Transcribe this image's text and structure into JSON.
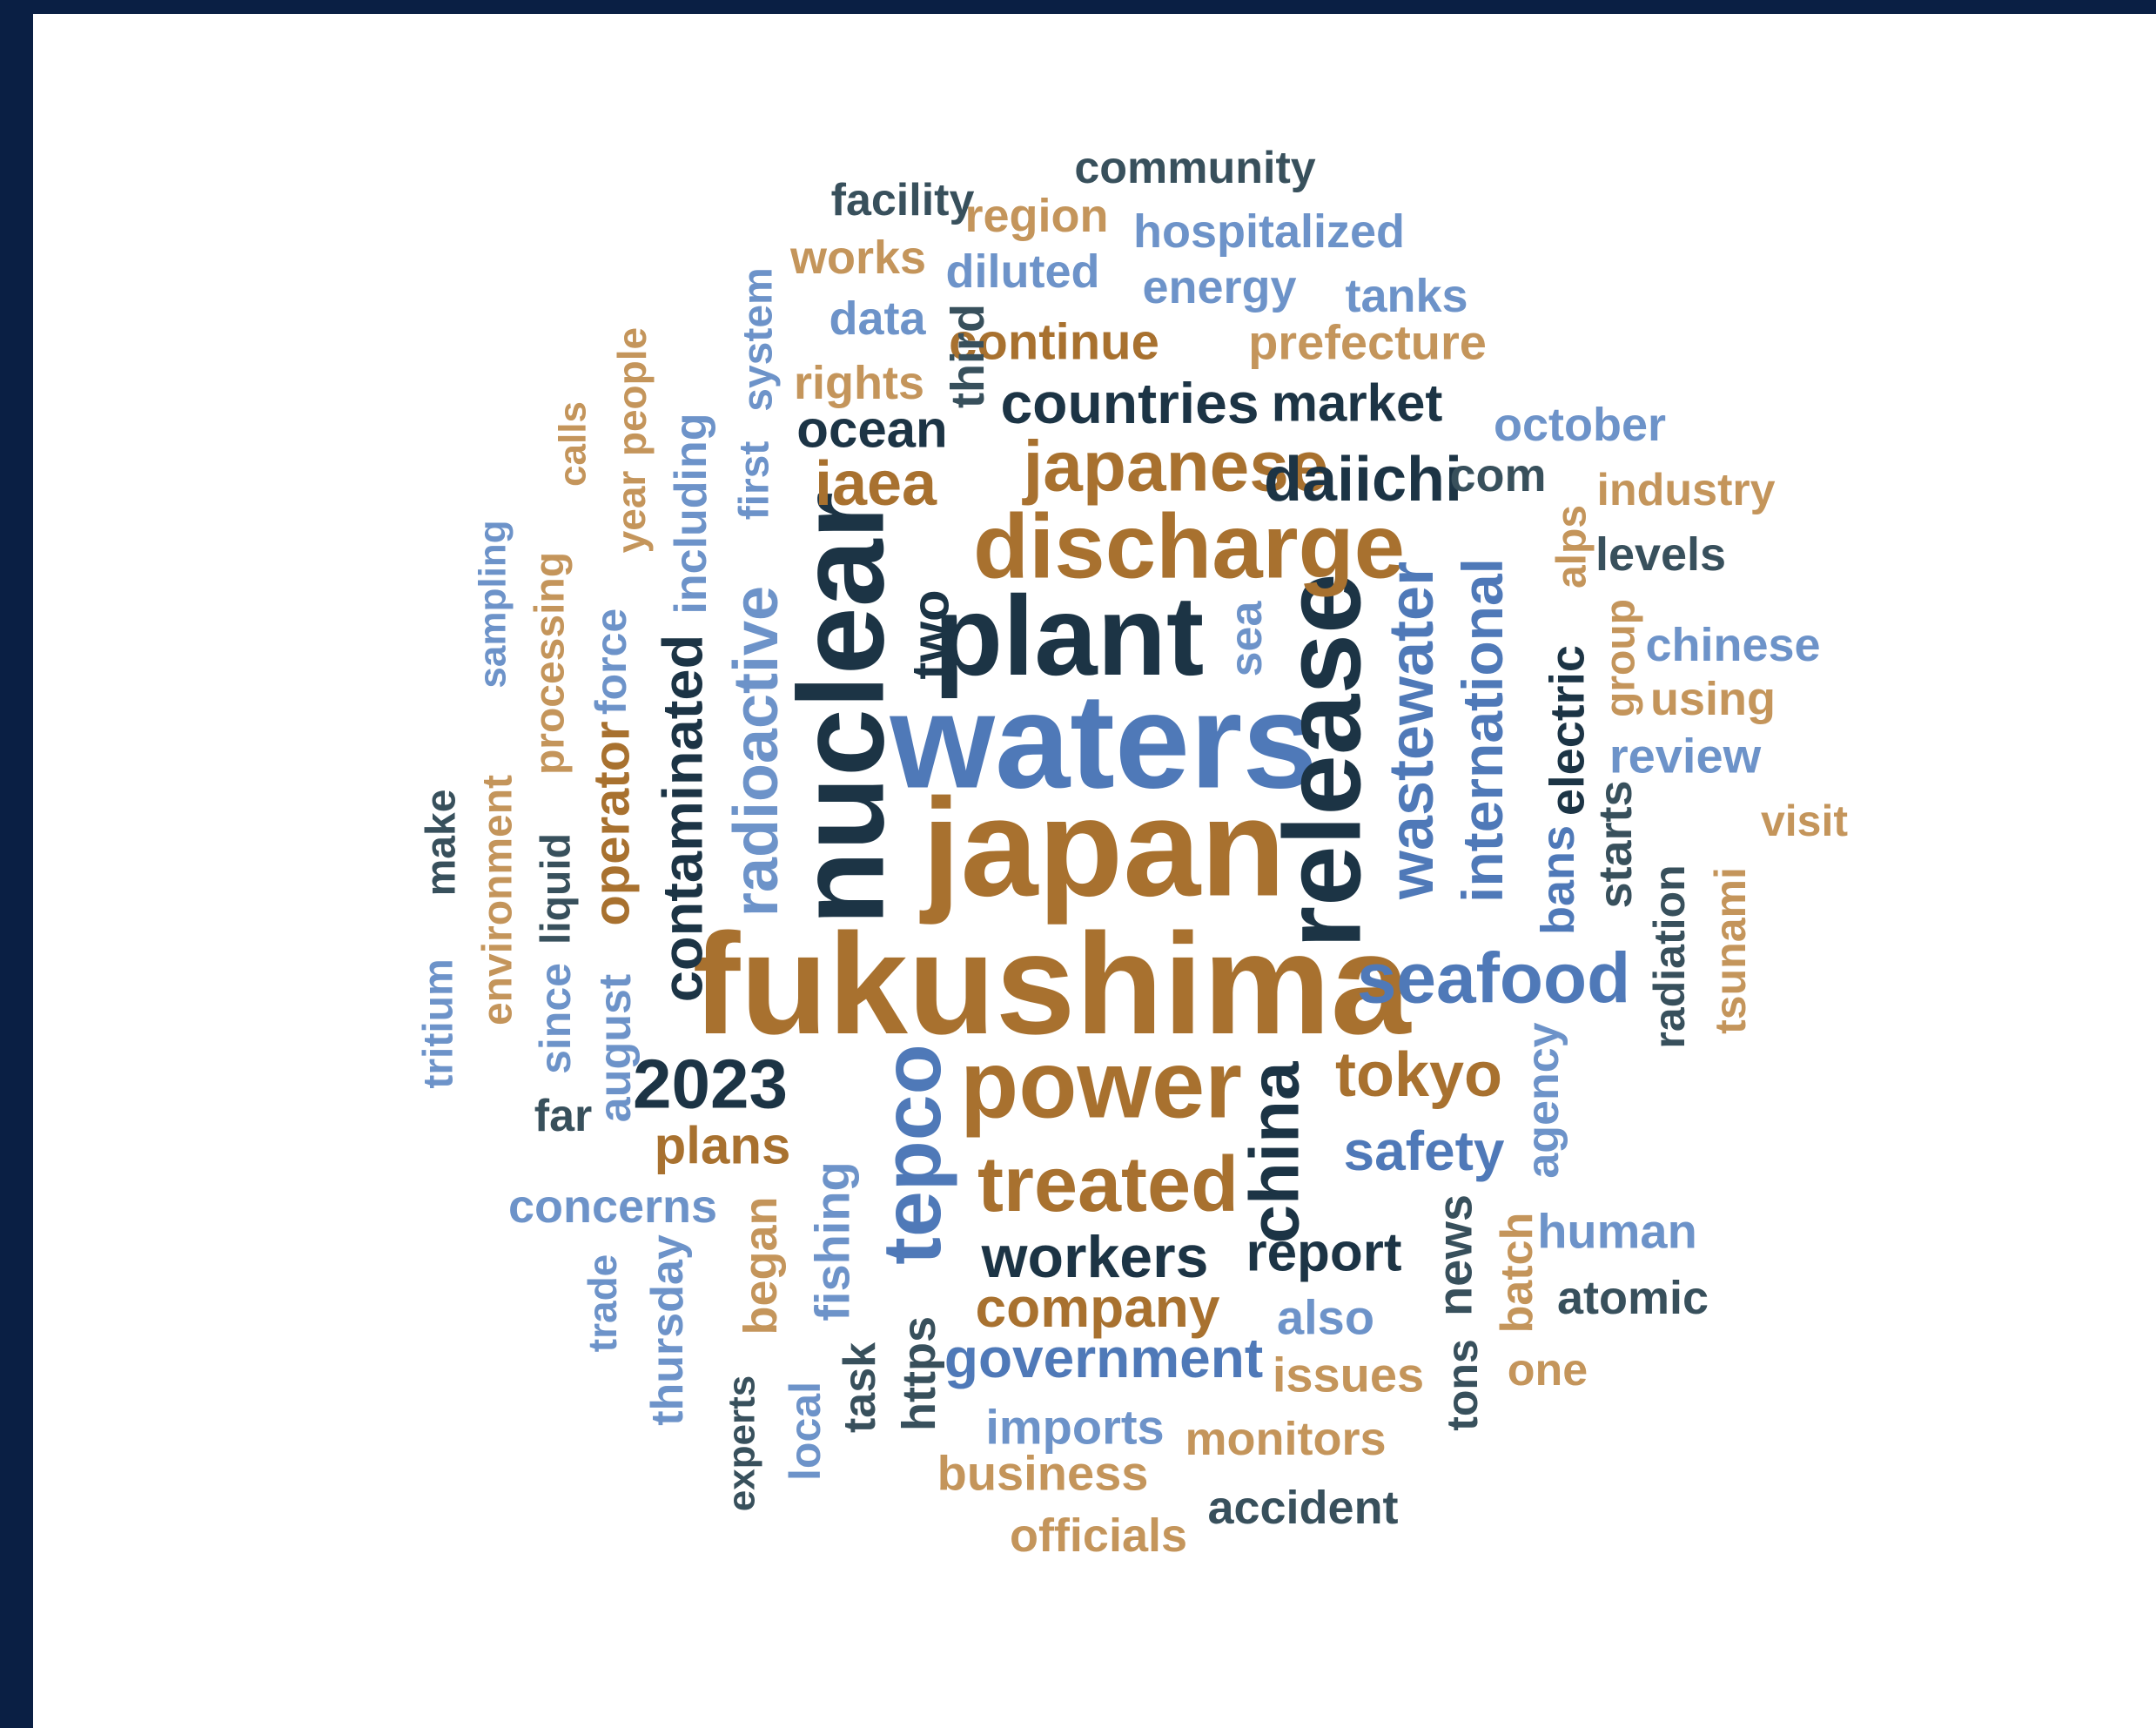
{
  "colors": {
    "frame": "#0a1f44",
    "background": "#ffffff",
    "dark_navy": "#1c3445",
    "slate": "#38505c",
    "brown": "#a8712f",
    "tan": "#c4955b",
    "blue": "#4f79b8",
    "light_blue": "#6d93c9"
  },
  "words": [
    {
      "text": "fukushima",
      "color": "#a8712f"
    },
    {
      "text": "japan",
      "color": "#a8712f"
    },
    {
      "text": "waters",
      "color": "#4f79b8"
    },
    {
      "text": "nuclear",
      "color": "#1c3445"
    },
    {
      "text": "plant",
      "color": "#1c3445"
    },
    {
      "text": "release",
      "color": "#1c3445"
    },
    {
      "text": "discharge",
      "color": "#a8712f"
    },
    {
      "text": "power",
      "color": "#a8712f"
    },
    {
      "text": "treated",
      "color": "#a8712f"
    },
    {
      "text": "wastewater",
      "color": "#4f79b8"
    },
    {
      "text": "tepco",
      "color": "#4f79b8"
    },
    {
      "text": "radioactive",
      "color": "#6d93c9"
    },
    {
      "text": "japanese",
      "color": "#a8712f"
    },
    {
      "text": "seafood",
      "color": "#4f79b8"
    },
    {
      "text": "china",
      "color": "#1c3445"
    },
    {
      "text": "contaminated",
      "color": "#1c3445"
    },
    {
      "text": "international",
      "color": "#4f79b8"
    },
    {
      "text": "2023",
      "color": "#1c3445"
    },
    {
      "text": "tokyo",
      "color": "#a8712f"
    },
    {
      "text": "daiichi",
      "color": "#1c3445"
    },
    {
      "text": "countries",
      "color": "#1c3445"
    },
    {
      "text": "workers",
      "color": "#1c3445"
    },
    {
      "text": "company",
      "color": "#a8712f"
    },
    {
      "text": "government",
      "color": "#4f79b8"
    },
    {
      "text": "iaea",
      "color": "#a8712f"
    },
    {
      "text": "safety",
      "color": "#4f79b8"
    },
    {
      "text": "ocean",
      "color": "#1c3445"
    },
    {
      "text": "report",
      "color": "#1c3445"
    },
    {
      "text": "two",
      "color": "#1c3445"
    },
    {
      "text": "operator",
      "color": "#a8712f"
    },
    {
      "text": "market",
      "color": "#1c3445"
    },
    {
      "text": "electric",
      "color": "#1c3445"
    },
    {
      "text": "continue",
      "color": "#a8712f"
    },
    {
      "text": "plans",
      "color": "#a8712f"
    },
    {
      "text": "fishing",
      "color": "#6d93c9"
    },
    {
      "text": "sea",
      "color": "#6d93c9"
    },
    {
      "text": "bans",
      "color": "#4f79b8"
    },
    {
      "text": "prefecture",
      "color": "#c4955b"
    },
    {
      "text": "community",
      "color": "#38505c"
    },
    {
      "text": "facility",
      "color": "#38505c"
    },
    {
      "text": "region",
      "color": "#c4955b"
    },
    {
      "text": "hospitalized",
      "color": "#6d93c9"
    },
    {
      "text": "works",
      "color": "#c4955b"
    },
    {
      "text": "diluted",
      "color": "#6d93c9"
    },
    {
      "text": "energy",
      "color": "#6d93c9"
    },
    {
      "text": "tanks",
      "color": "#6d93c9"
    },
    {
      "text": "data",
      "color": "#6d93c9"
    },
    {
      "text": "rights",
      "color": "#c4955b"
    },
    {
      "text": "third",
      "color": "#38505c"
    },
    {
      "text": "system",
      "color": "#6d93c9"
    },
    {
      "text": "october",
      "color": "#6d93c9"
    },
    {
      "text": "com",
      "color": "#38505c"
    },
    {
      "text": "industry",
      "color": "#c4955b"
    },
    {
      "text": "levels",
      "color": "#38505c"
    },
    {
      "text": "alps",
      "color": "#c4955b"
    },
    {
      "text": "chinese",
      "color": "#6d93c9"
    },
    {
      "text": "using",
      "color": "#c4955b"
    },
    {
      "text": "group",
      "color": "#c4955b"
    },
    {
      "text": "review",
      "color": "#6d93c9"
    },
    {
      "text": "starts",
      "color": "#38505c"
    },
    {
      "text": "visit",
      "color": "#c4955b"
    },
    {
      "text": "radiation",
      "color": "#38505c"
    },
    {
      "text": "tsunami",
      "color": "#c4955b"
    },
    {
      "text": "agency",
      "color": "#6d93c9"
    },
    {
      "text": "human",
      "color": "#6d93c9"
    },
    {
      "text": "news",
      "color": "#38505c"
    },
    {
      "text": "batch",
      "color": "#c4955b"
    },
    {
      "text": "atomic",
      "color": "#38505c"
    },
    {
      "text": "also",
      "color": "#6d93c9"
    },
    {
      "text": "issues",
      "color": "#c4955b"
    },
    {
      "text": "tons",
      "color": "#38505c"
    },
    {
      "text": "one",
      "color": "#c4955b"
    },
    {
      "text": "monitors",
      "color": "#c4955b"
    },
    {
      "text": "imports",
      "color": "#6d93c9"
    },
    {
      "text": "business",
      "color": "#c4955b"
    },
    {
      "text": "accident",
      "color": "#38505c"
    },
    {
      "text": "officials",
      "color": "#c4955b"
    },
    {
      "text": "task",
      "color": "#38505c"
    },
    {
      "text": "https",
      "color": "#38505c"
    },
    {
      "text": "local",
      "color": "#6d93c9"
    },
    {
      "text": "experts",
      "color": "#38505c"
    },
    {
      "text": "began",
      "color": "#c4955b"
    },
    {
      "text": "thursday",
      "color": "#6d93c9"
    },
    {
      "text": "trade",
      "color": "#6d93c9"
    },
    {
      "text": "concerns",
      "color": "#6d93c9"
    },
    {
      "text": "far",
      "color": "#38505c"
    },
    {
      "text": "august",
      "color": "#6d93c9"
    },
    {
      "text": "since",
      "color": "#6d93c9"
    },
    {
      "text": "liquid",
      "color": "#38505c"
    },
    {
      "text": "environment",
      "color": "#c4955b"
    },
    {
      "text": "make",
      "color": "#38505c"
    },
    {
      "text": "tritium",
      "color": "#6d93c9"
    },
    {
      "text": "sampling",
      "color": "#6d93c9"
    },
    {
      "text": "processing",
      "color": "#c4955b"
    },
    {
      "text": "force",
      "color": "#6d93c9"
    },
    {
      "text": "calls",
      "color": "#c4955b"
    },
    {
      "text": "year",
      "color": "#c4955b"
    },
    {
      "text": "people",
      "color": "#c4955b"
    },
    {
      "text": "including",
      "color": "#6d93c9"
    },
    {
      "text": "first",
      "color": "#6d93c9"
    }
  ]
}
